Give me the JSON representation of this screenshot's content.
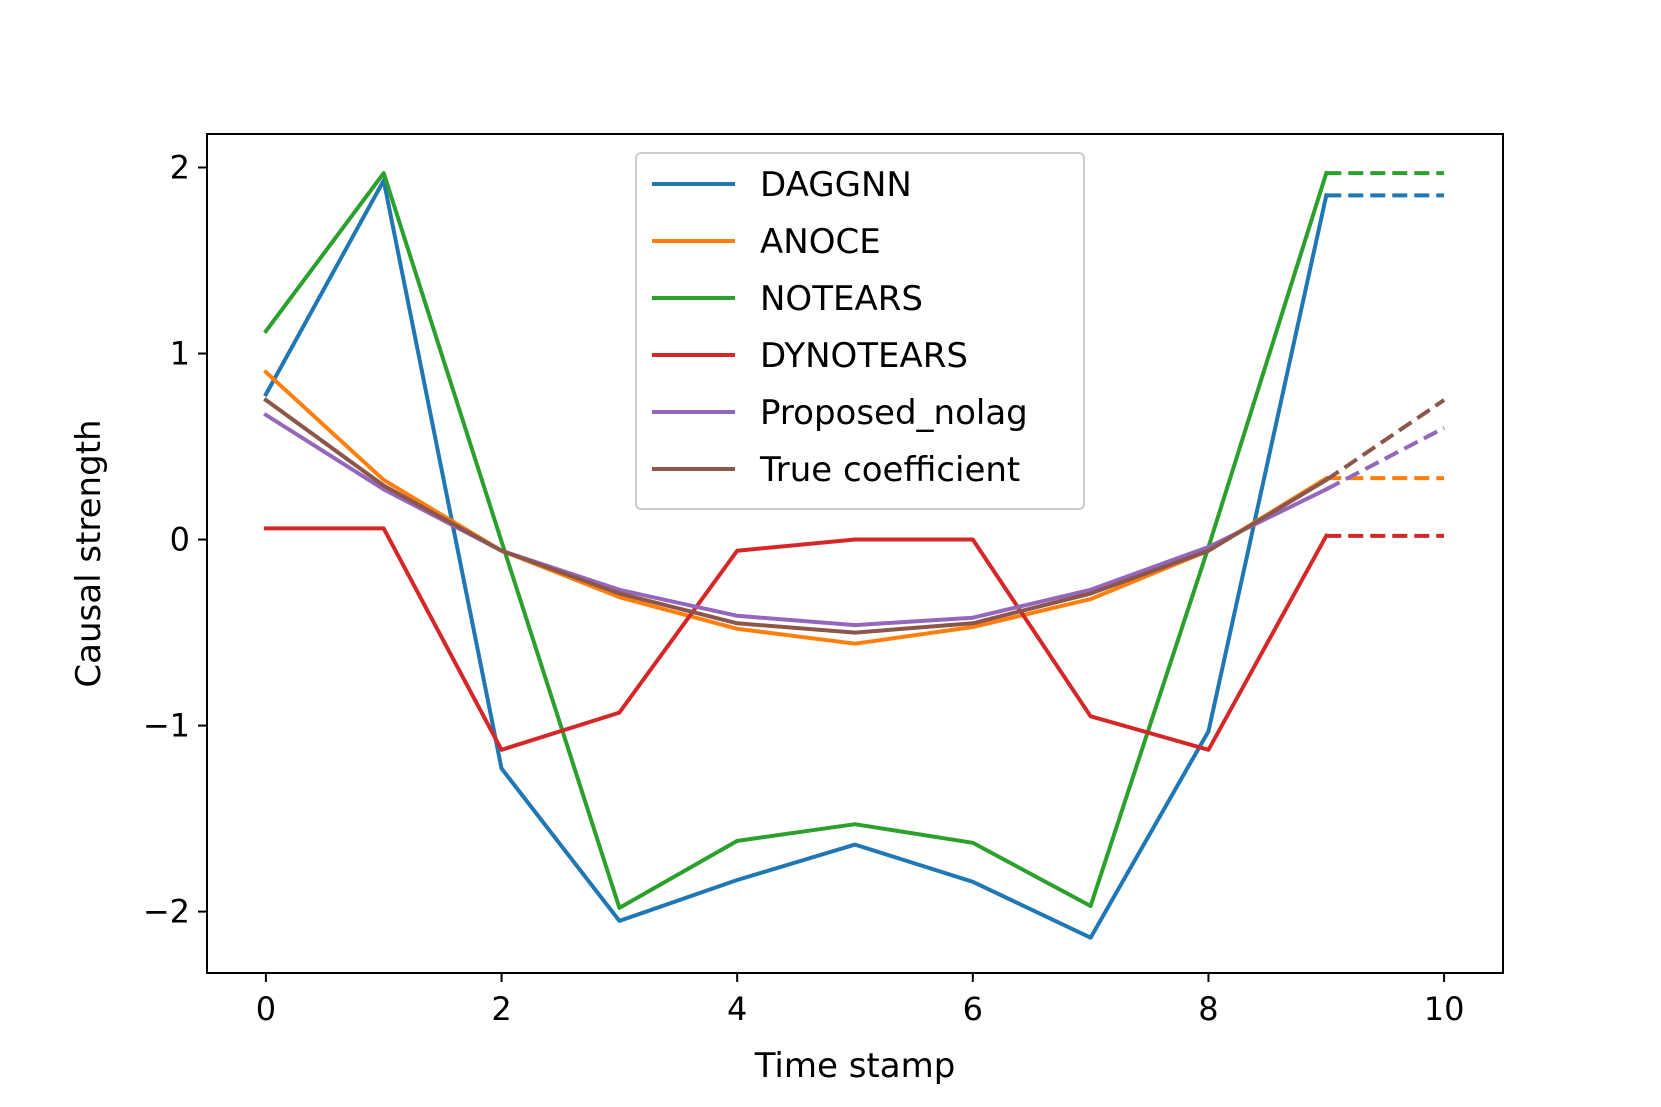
{
  "chart_data": {
    "type": "line",
    "title": "",
    "xlabel": "Time stamp",
    "ylabel": "Causal strength",
    "xlim": [
      -0.5,
      10.5
    ],
    "ylim": [
      -2.33,
      2.18
    ],
    "x_ticks": [
      0,
      2,
      4,
      6,
      8,
      10
    ],
    "x_tick_labels": [
      "0",
      "2",
      "4",
      "6",
      "8",
      "10"
    ],
    "y_ticks": [
      2,
      1,
      0,
      -1,
      -2
    ],
    "y_tick_labels": [
      "2",
      "1",
      "0",
      "−1",
      "−2"
    ],
    "grid": false,
    "legend_position": "upper center",
    "x": [
      0,
      1,
      2,
      3,
      4,
      5,
      6,
      7,
      8,
      9
    ],
    "series": [
      {
        "name": "DAGGNN",
        "color": "#1f77b4",
        "values": [
          0.78,
          1.93,
          -1.23,
          -2.05,
          -1.83,
          -1.64,
          -1.84,
          -2.14,
          -1.03,
          1.85
        ],
        "extension": [
          1.85,
          1.85
        ]
      },
      {
        "name": "ANOCE",
        "color": "#ff7f0e",
        "values": [
          0.9,
          0.32,
          -0.06,
          -0.31,
          -0.48,
          -0.56,
          -0.47,
          -0.32,
          -0.06,
          0.33
        ],
        "extension": [
          0.33,
          0.33
        ]
      },
      {
        "name": "NOTEARS",
        "color": "#2ca02c",
        "values": [
          1.12,
          1.97,
          -0.01,
          -1.98,
          -1.62,
          -1.53,
          -1.63,
          -1.97,
          -0.04,
          1.97
        ],
        "extension": [
          1.97,
          1.97
        ]
      },
      {
        "name": "DYNOTEARS",
        "color": "#d62728",
        "values": [
          0.06,
          0.06,
          -1.13,
          -0.93,
          -0.06,
          0.0,
          0.0,
          -0.95,
          -1.13,
          0.02
        ],
        "extension": [
          0.02,
          0.02
        ]
      },
      {
        "name": "Proposed_nolag",
        "color": "#9467bd",
        "values": [
          0.67,
          0.27,
          -0.06,
          -0.27,
          -0.41,
          -0.46,
          -0.42,
          -0.27,
          -0.04,
          0.27
        ],
        "extension": [
          0.27,
          0.6
        ]
      },
      {
        "name": "True coefficient",
        "color": "#8c564b",
        "values": [
          0.75,
          0.29,
          -0.06,
          -0.29,
          -0.45,
          -0.5,
          -0.45,
          -0.29,
          -0.06,
          0.32
        ],
        "extension": [
          0.32,
          0.75
        ]
      }
    ]
  }
}
